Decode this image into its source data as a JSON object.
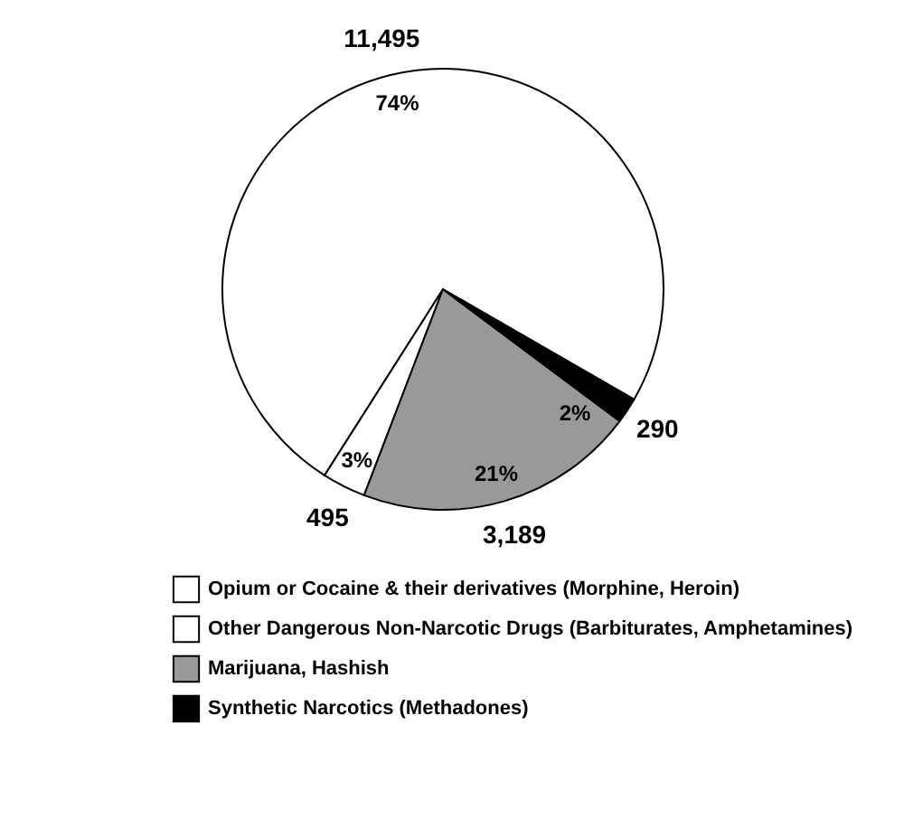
{
  "chart_data": {
    "type": "pie",
    "categories": [
      "Opium or Cocaine & their derivatives (Morphine, Heroin)",
      "Other Dangerous Non-Narcotic Drugs (Barbiturates, Amphetamines)",
      "Marijuana, Hashish",
      "Synthetic Narcotics (Methadones)"
    ],
    "values": [
      11495,
      495,
      3189,
      290
    ],
    "colors": [
      "#ffffff",
      "#ffffff",
      "#999999",
      "#000000"
    ],
    "value_labels": [
      "11,495",
      "495",
      "3,189",
      "290"
    ],
    "annotations": [
      {
        "text": "74%",
        "x": "Opium or Cocaine & their derivatives (Morphine, Heroin)"
      },
      {
        "text": "3%",
        "x": "Other Dangerous Non-Narcotic Drugs (Barbiturates, Amphetamines)"
      },
      {
        "text": "21%",
        "x": "Marijuana, Hashish"
      },
      {
        "text": "2%",
        "x": "Synthetic Narcotics (Methadones)"
      }
    ],
    "legend": "bottom"
  }
}
